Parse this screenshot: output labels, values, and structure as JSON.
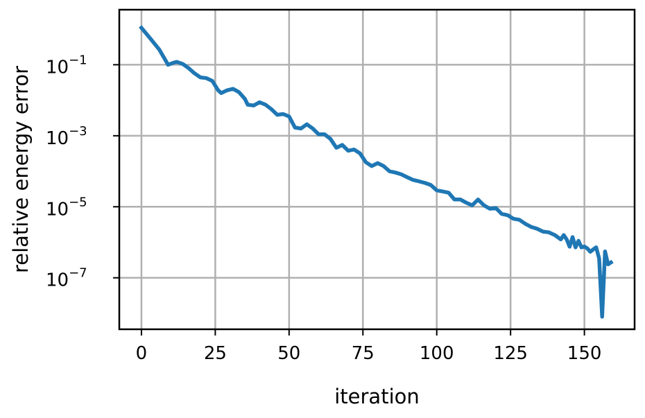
{
  "chart_data": {
    "type": "line",
    "title": "",
    "xlabel": "iteration",
    "ylabel": "relative energy error",
    "xlim": [
      -7.5,
      167
    ],
    "ylim_log10": [
      -8.45,
      0.55
    ],
    "yscale": "log",
    "grid": true,
    "legend": "none",
    "x_ticks": [
      0,
      25,
      50,
      75,
      100,
      125,
      150
    ],
    "x_tick_labels": [
      "0",
      "25",
      "50",
      "75",
      "100",
      "125",
      "150"
    ],
    "y_ticks_log10": [
      -1,
      -3,
      -5,
      -7
    ],
    "y_tick_labels": [
      {
        "base": "10",
        "exp": "−1"
      },
      {
        "base": "10",
        "exp": "−3"
      },
      {
        "base": "10",
        "exp": "−5"
      },
      {
        "base": "10",
        "exp": "−7"
      }
    ],
    "series": [
      {
        "color": "#1f77b4",
        "x": [
          0,
          3,
          6,
          8,
          9,
          11,
          12,
          14,
          16,
          18,
          20,
          22,
          24,
          26,
          27,
          29,
          31,
          33,
          35,
          36,
          38,
          40,
          42,
          44,
          46,
          48,
          50,
          52,
          54,
          56,
          58,
          60,
          62,
          64,
          66,
          68,
          70,
          72,
          74,
          76,
          78,
          80,
          82,
          84,
          86,
          88,
          90,
          92,
          94,
          96,
          98,
          100,
          102,
          104,
          106,
          108,
          110,
          112,
          114,
          116,
          118,
          120,
          122,
          124,
          126,
          128,
          130,
          132,
          134,
          136,
          138,
          140,
          142,
          143,
          144,
          145,
          146,
          147,
          148,
          149,
          150,
          151,
          152,
          153,
          154,
          155,
          156,
          157,
          158,
          159
        ],
        "y": [
          1.1,
          0.55,
          0.27,
          0.14,
          0.1,
          0.115,
          0.12,
          0.105,
          0.08,
          0.057,
          0.044,
          0.042,
          0.035,
          0.019,
          0.016,
          0.019,
          0.021,
          0.017,
          0.011,
          0.0075,
          0.0071,
          0.0088,
          0.0075,
          0.0056,
          0.0039,
          0.0041,
          0.0035,
          0.0017,
          0.0016,
          0.0021,
          0.0016,
          0.0011,
          0.0011,
          0.00082,
          0.00046,
          0.00055,
          0.00038,
          0.00041,
          0.00032,
          0.00018,
          0.00014,
          0.00017,
          0.00014,
          0.0001,
          9.2e-05,
          8.2e-05,
          6.8e-05,
          5.7e-05,
          5.2e-05,
          4.7e-05,
          4.1e-05,
          2.9e-05,
          2.7e-05,
          2.5e-05,
          1.6e-05,
          1.6e-05,
          1.3e-05,
          1.1e-05,
          1.6e-05,
          1.1e-05,
          8.8e-06,
          9.2e-06,
          6.3e-06,
          5.8e-06,
          4.6e-06,
          4.3e-06,
          3.3e-06,
          2.7e-06,
          2.4e-06,
          2e-06,
          1.9e-06,
          1.6e-06,
          1.2e-06,
          1.6e-06,
          1.2e-06,
          7.5e-07,
          1.4e-06,
          7.2e-07,
          1.1e-06,
          7.2e-07,
          7.6e-07,
          6.7e-07,
          5.4e-07,
          6.3e-07,
          7.2e-07,
          3.5e-07,
          8e-09,
          5.5e-07,
          2.4e-07,
          2.7e-07
        ]
      }
    ]
  }
}
